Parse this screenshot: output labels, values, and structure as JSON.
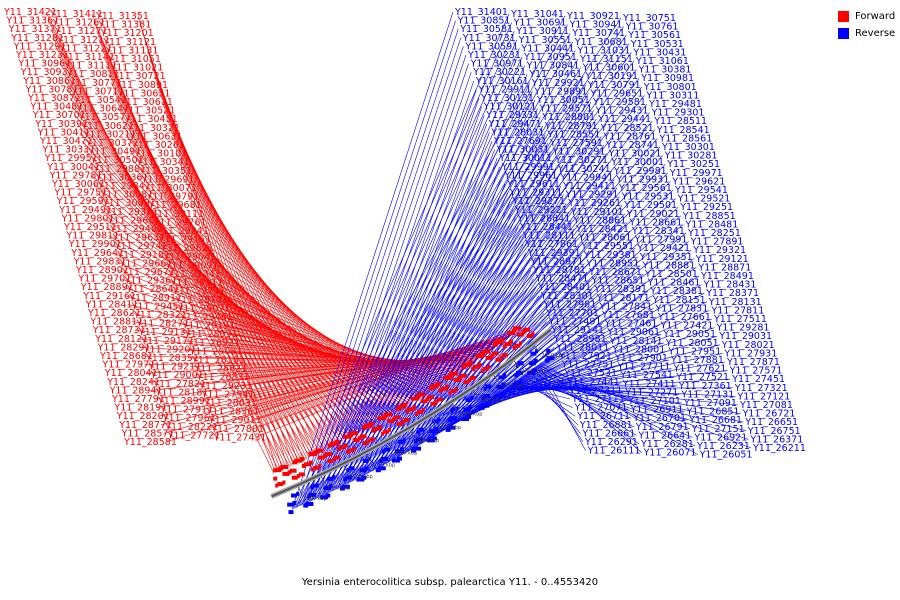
{
  "legend": [
    {
      "label": "Forward",
      "color": "#ff0000"
    },
    {
      "label": "Reverse",
      "color": "#0000ff"
    }
  ],
  "caption": "Yersinia enterocolitica subsp. palearctica Y11. - 0..4553420",
  "backbone_ticks": [
    "3200 kbp",
    "3150 kbp",
    "3100 kbp",
    "3050 kbp",
    "3000 kbp",
    "2950 kbp",
    "2900 kbp",
    "2850 kbp",
    "2800 kbp",
    "2750 kbp",
    "2700 kbp",
    "2650 kbp"
  ],
  "forward_genes": [
    "Y11_31421",
    "Y11_31411",
    "Y11_31351",
    "Y11_31361",
    "Y11_31261",
    "Y11_31381",
    "Y11_31371",
    "Y11_31271",
    "Y11_31201",
    "Y11_31281",
    "Y11_31211",
    "Y11_31121",
    "Y11_31291",
    "Y11_31221",
    "Y11_31131",
    "Y11_31231",
    "Y11_31141",
    "Y11_31051",
    "Y11_30961",
    "Y11_31111",
    "Y11_31021",
    "Y11_30931",
    "Y11_30811",
    "Y11_30721",
    "Y11_30861",
    "Y11_30771",
    "Y11_30891",
    "Y11_30781",
    "Y11_30711",
    "Y11_30651",
    "Y11_30871",
    "Y11_30541",
    "Y11_30611",
    "Y11_30481",
    "Y11_30641",
    "Y11_30521",
    "Y11_30701",
    "Y11_30571",
    "Y11_30451",
    "Y11_30391",
    "Y11_30621",
    "Y11_30321",
    "Y11_30411",
    "Y11_30211",
    "Y11_30631",
    "Y11_30471",
    "Y11_30371",
    "Y11_30261",
    "Y11_30331",
    "Y11_30491",
    "Y11_30101",
    "Y11_29951",
    "Y11_30501",
    "Y11_30341",
    "Y11_30041",
    "Y11_29881",
    "Y11_30351",
    "Y11_29781",
    "Y11_30361",
    "Y11_29691",
    "Y11_30061",
    "Y11_29841",
    "Y11_30071",
    "Y11_29751",
    "Y11_30081",
    "Y11_29791",
    "Y11_29591",
    "Y11_30091",
    "Y11_29681",
    "Y11_29491",
    "Y11_29371",
    "Y11_30111",
    "Y11_29801",
    "Y11_29601",
    "Y11_29761",
    "Y11_29511",
    "Y11_29401",
    "Y11_29241",
    "Y11_29811",
    "Y11_29631",
    "Y11_29151",
    "Y11_29901",
    "Y11_29741",
    "Y11_29821",
    "Y11_29641",
    "Y11_29181",
    "Y11_29041",
    "Y11_29831",
    "Y11_29661",
    "Y11_29091",
    "Y11_28901",
    "Y11_29671",
    "Y11_29341",
    "Y11_29701",
    "Y11_29361",
    "Y11_29111",
    "Y11_28891",
    "Y11_28641",
    "Y11_29711",
    "Y11_29161",
    "Y11_28911",
    "Y11_28701",
    "Y11_28411",
    "Y11_29451",
    "Y11_29071",
    "Y11_28621",
    "Y11_28321",
    "Y11_29461",
    "Y11_28811",
    "Y11_28271",
    "Y11_29191",
    "Y11_28731",
    "Y11_29131",
    "Y11_28931",
    "Y11_28121",
    "Y11_29171",
    "Y11_28921",
    "Y11_28291",
    "Y11_29201",
    "Y11_29081",
    "Y11_28681",
    "Y11_28351",
    "Y11_28161",
    "Y11_27971",
    "Y11_29211",
    "Y11_28821",
    "Y11_28041",
    "Y11_29001",
    "Y11_28831",
    "Y11_28241",
    "Y11_27821",
    "Y11_29231",
    "Y11_28941",
    "Y11_28181",
    "Y11_27941",
    "Y11_27791",
    "Y11_28991",
    "Y11_28631",
    "Y11_28191",
    "Y11_27911",
    "Y11_28361",
    "Y11_28201",
    "Y11_27961",
    "Y11_29011",
    "Y11_28771",
    "Y11_28221",
    "Y11_27801",
    "Y11_28571",
    "Y11_27721",
    "Y11_27431",
    "Y11_28581"
  ],
  "reverse_genes": [
    "Y11_31401",
    "Y11_31041",
    "Y11_30921",
    "Y11_30751",
    "Y11_30851",
    "Y11_30691",
    "Y11_30941",
    "Y11_30761",
    "Y11_30581",
    "Y11_30911",
    "Y11_30741",
    "Y11_30561",
    "Y11_30731",
    "Y11_30551",
    "Y11_30681",
    "Y11_30531",
    "Y11_30591",
    "Y11_30441",
    "Y11_31031",
    "Y11_30431",
    "Y11_30231",
    "Y11_30951",
    "Y11_31151",
    "Y11_31061",
    "Y11_30971",
    "Y11_30841",
    "Y11_30601",
    "Y11_30381",
    "Y11_30221",
    "Y11_30461",
    "Y11_30191",
    "Y11_30981",
    "Y11_30161",
    "Y11_29921",
    "Y11_30791",
    "Y11_30801",
    "Y11_29911",
    "Y11_29891",
    "Y11_29651",
    "Y11_30311",
    "Y11_30131",
    "Y11_30051",
    "Y11_29581",
    "Y11_29481",
    "Y11_30121",
    "Y11_29571",
    "Y11_29431",
    "Y11_29301",
    "Y11_29331",
    "Y11_28801",
    "Y11_29441",
    "Y11_28511",
    "Y11_29471",
    "Y11_28791",
    "Y11_28521",
    "Y11_28541",
    "Y11_28031",
    "Y11_28551",
    "Y11_28761",
    "Y11_28561",
    "Y11_27691",
    "Y11_27591",
    "Y11_28741",
    "Y11_30301",
    "Y11_30031",
    "Y11_30291",
    "Y11_30021",
    "Y11_30281",
    "Y11_30011",
    "Y11_30271",
    "Y11_30001",
    "Y11_30251",
    "Y11_29991",
    "Y11_30241",
    "Y11_29981",
    "Y11_29971",
    "Y11_29961",
    "Y11_29941",
    "Y11_29931",
    "Y11_29621",
    "Y11_29611",
    "Y11_29411",
    "Y11_29561",
    "Y11_29541",
    "Y11_29311",
    "Y11_29291",
    "Y11_29531",
    "Y11_29521",
    "Y11_29271",
    "Y11_29261",
    "Y11_29501",
    "Y11_29251",
    "Y11_29221",
    "Y11_29101",
    "Y11_29021",
    "Y11_28851",
    "Y11_28841",
    "Y11_28861",
    "Y11_28661",
    "Y11_28481",
    "Y11_28441",
    "Y11_28421",
    "Y11_28341",
    "Y11_28251",
    "Y11_28111",
    "Y11_28061",
    "Y11_27991",
    "Y11_27891",
    "Y11_27861",
    "Y11_29551",
    "Y11_29421",
    "Y11_29321",
    "Y11_29391",
    "Y11_29381",
    "Y11_29351",
    "Y11_29121",
    "Y11_28971",
    "Y11_28951",
    "Y11_28881",
    "Y11_28871",
    "Y11_28781",
    "Y11_28671",
    "Y11_28501",
    "Y11_28491",
    "Y11_28471",
    "Y11_28651",
    "Y11_28461",
    "Y11_28431",
    "Y11_28401",
    "Y11_28391",
    "Y11_28381",
    "Y11_28371",
    "Y11_28301",
    "Y11_28171",
    "Y11_28151",
    "Y11_28131",
    "Y11_27981",
    "Y11_27841",
    "Y11_27831",
    "Y11_27811",
    "Y11_27701",
    "Y11_27681",
    "Y11_27661",
    "Y11_27511",
    "Y11_27491",
    "Y11_27461",
    "Y11_27421",
    "Y11_29281",
    "Y11_29141",
    "Y11_29061",
    "Y11_29051",
    "Y11_29031",
    "Y11_28981",
    "Y11_28141",
    "Y11_28051",
    "Y11_28021",
    "Y11_28011",
    "Y11_28001",
    "Y11_27951",
    "Y11_27931",
    "Y11_27921",
    "Y11_27901",
    "Y11_27881",
    "Y11_27871",
    "Y11_27751",
    "Y11_27711",
    "Y11_27621",
    "Y11_27571",
    "Y11_27531",
    "Y11_27541",
    "Y11_27521",
    "Y11_27451",
    "Y11_27441",
    "Y11_27411",
    "Y11_27361",
    "Y11_27321",
    "Y11_27311",
    "Y11_27271",
    "Y11_27131",
    "Y11_27121",
    "Y11_27111",
    "Y11_27101",
    "Y11_27091",
    "Y11_27081",
    "Y11_27071",
    "Y11_26911",
    "Y11_26851",
    "Y11_26721",
    "Y11_26711",
    "Y11_26701",
    "Y11_26681",
    "Y11_26651",
    "Y11_26881",
    "Y11_26791",
    "Y11_27151",
    "Y11_26751",
    "Y11_26661",
    "Y11_26641",
    "Y11_26921",
    "Y11_26371",
    "Y11_26291",
    "Y11_26281",
    "Y11_26231",
    "Y11_26211",
    "Y11_26111",
    "Y11_26071",
    "Y11_26051"
  ]
}
